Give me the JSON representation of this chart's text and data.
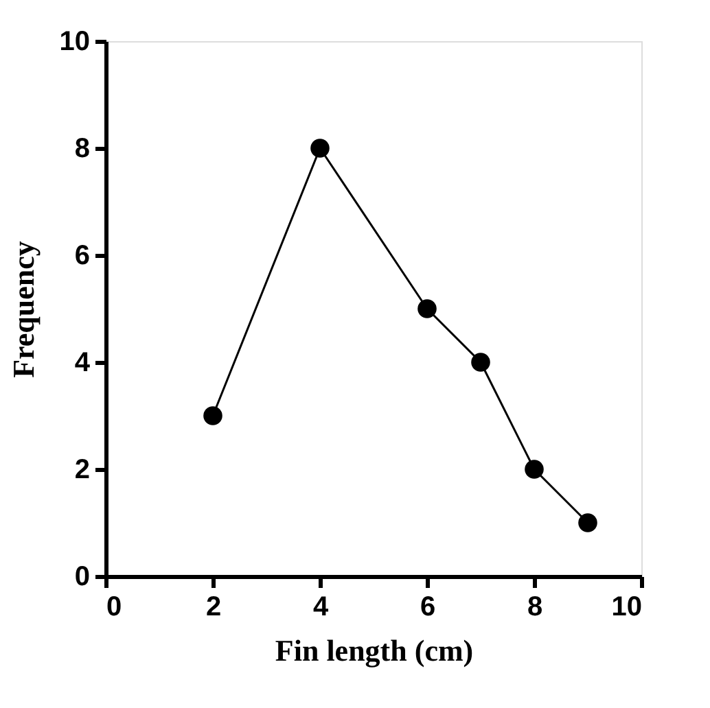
{
  "chart_data": {
    "type": "line",
    "xlabel": "Fin length (cm)",
    "ylabel": "Frequency",
    "x": [
      2,
      4,
      6,
      7,
      8,
      9
    ],
    "series": [
      {
        "color": "#000000",
        "values": [
          3,
          8,
          5,
          4,
          2,
          1
        ]
      }
    ],
    "xlim": [
      0,
      10
    ],
    "ylim": [
      0,
      10
    ],
    "xticks": [
      0,
      2,
      4,
      6,
      8,
      10
    ],
    "yticks": [
      0,
      2,
      4,
      6,
      8,
      10
    ],
    "marker": "circle",
    "line_style": "solid",
    "grid": false,
    "legend": false
  }
}
